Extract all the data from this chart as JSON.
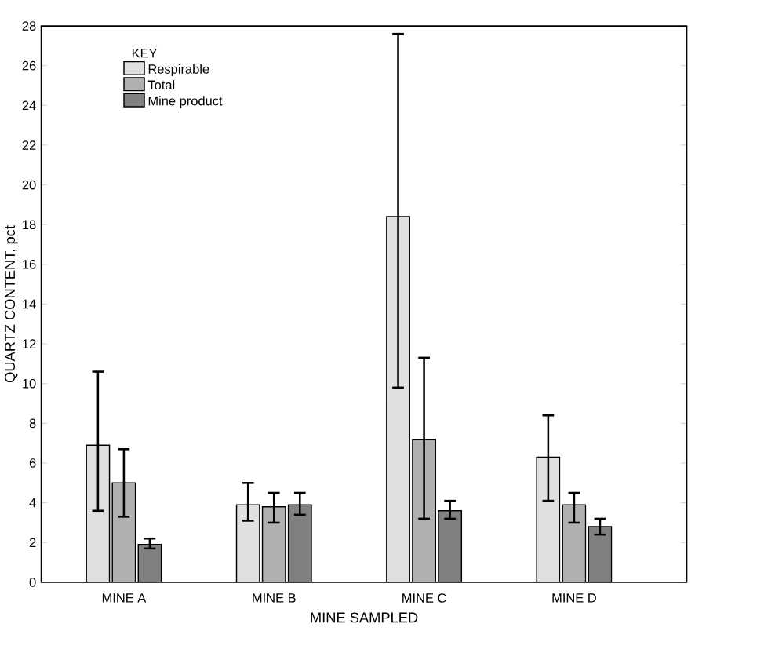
{
  "chart_data": {
    "type": "bar",
    "xlabel": "MINE SAMPLED",
    "ylabel": "QUARTZ CONTENT, pct",
    "legend_title": "KEY",
    "legend": "top left",
    "grid": false,
    "categories": [
      "MINE A",
      "MINE B",
      "MINE C",
      "MINE D"
    ],
    "ylim": [
      0,
      28
    ],
    "yticks": [
      0,
      2,
      4,
      6,
      8,
      10,
      12,
      14,
      16,
      18,
      20,
      22,
      24,
      26,
      28
    ],
    "series": [
      {
        "name": "Respirable",
        "color": "#e0e0e0",
        "values": [
          6.9,
          3.9,
          18.4,
          6.3
        ],
        "errors": [
          [
            3.6,
            10.6
          ],
          [
            3.1,
            5.0
          ],
          [
            9.8,
            27.6
          ],
          [
            4.1,
            8.4
          ]
        ]
      },
      {
        "name": "Total",
        "color": "#b0b0b0",
        "values": [
          5.0,
          3.8,
          7.2,
          3.9
        ],
        "errors": [
          [
            3.3,
            6.7
          ],
          [
            3.0,
            4.5
          ],
          [
            3.2,
            11.3
          ],
          [
            3.0,
            4.5
          ]
        ]
      },
      {
        "name": "Mine product",
        "color": "#808080",
        "values": [
          1.9,
          3.9,
          3.6,
          2.8
        ],
        "errors": [
          [
            1.7,
            2.2
          ],
          [
            3.4,
            4.5
          ],
          [
            3.2,
            4.1
          ],
          [
            2.4,
            3.2
          ]
        ]
      }
    ]
  }
}
